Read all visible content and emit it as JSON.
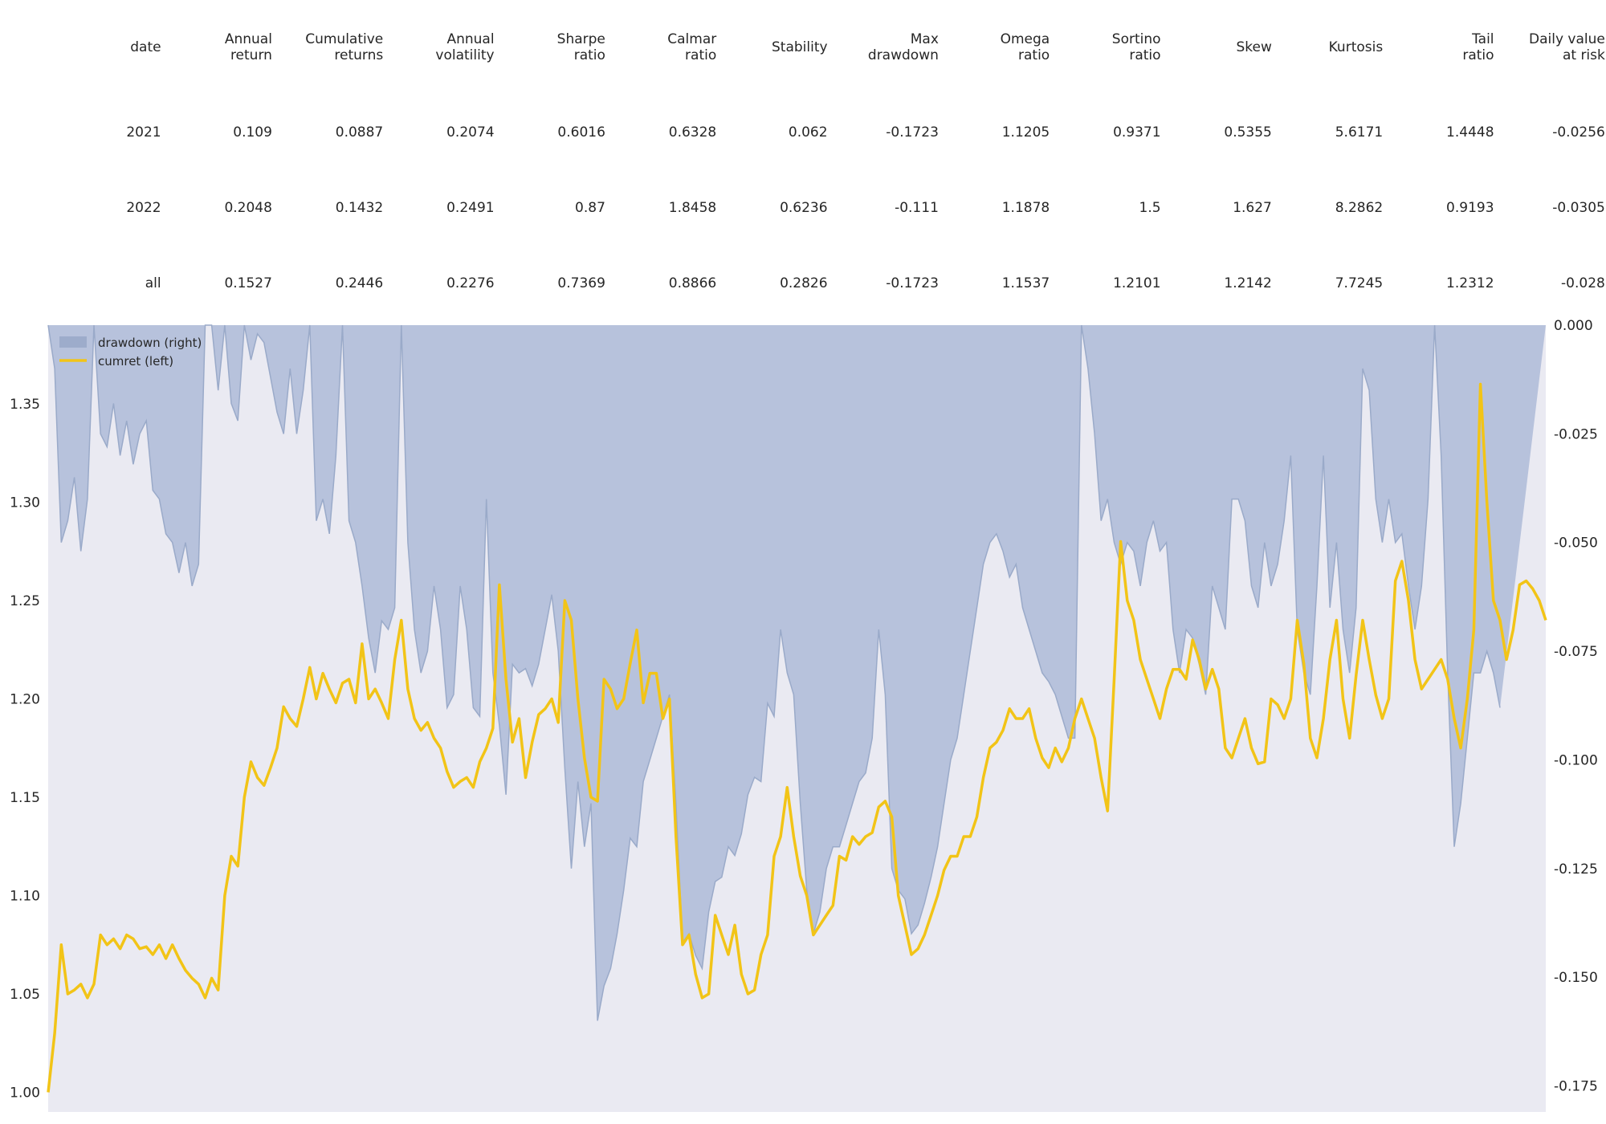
{
  "table": {
    "columns": [
      "date",
      "Annual\nreturn",
      "Cumulative\nreturns",
      "Annual\nvolatility",
      "Sharpe\nratio",
      "Calmar\nratio",
      "Stability",
      "Max\ndrawdown",
      "Omega\nratio",
      "Sortino\nratio",
      "Skew",
      "Kurtosis",
      "Tail\nratio",
      "Daily value\nat risk"
    ],
    "rows": [
      [
        "2021",
        "0.109",
        "0.0887",
        "0.2074",
        "0.6016",
        "0.6328",
        "0.062",
        "-0.1723",
        "1.1205",
        "0.9371",
        "0.5355",
        "5.6171",
        "1.4448",
        "-0.0256"
      ],
      [
        "2022",
        "0.2048",
        "0.1432",
        "0.2491",
        "0.87",
        "1.8458",
        "0.6236",
        "-0.111",
        "1.1878",
        "1.5",
        "1.627",
        "8.2862",
        "0.9193",
        "-0.0305"
      ],
      [
        "all",
        "0.1527",
        "0.2446",
        "0.2276",
        "0.7369",
        "0.8866",
        "0.2826",
        "-0.1723",
        "1.1537",
        "1.2101",
        "1.2142",
        "7.7245",
        "1.2312",
        "-0.028"
      ]
    ]
  },
  "chart_data": {
    "type": "line",
    "title": "",
    "xlabel": "",
    "legend": [
      {
        "label": "drawdown (right)",
        "kind": "area"
      },
      {
        "label": "cumret (left)",
        "kind": "line"
      }
    ],
    "legend_position": "top-left",
    "grid": false,
    "background_color": "#eaeaf2",
    "left_axis": {
      "ticks": [
        "1.00",
        "1.05",
        "1.10",
        "1.15",
        "1.20",
        "1.25",
        "1.30",
        "1.35"
      ],
      "ylim": [
        0.99,
        1.39
      ]
    },
    "right_axis": {
      "ticks": [
        "0.000",
        "-0.025",
        "-0.050",
        "-0.075",
        "-0.100",
        "-0.125",
        "-0.150",
        "-0.175"
      ],
      "ylim": [
        -0.181,
        0.0
      ]
    },
    "series": [
      {
        "name": "cumret (left)",
        "axis": "left",
        "color": "#f2c417",
        "values": [
          1.0,
          1.03,
          1.075,
          1.05,
          1.052,
          1.055,
          1.048,
          1.055,
          1.08,
          1.075,
          1.078,
          1.073,
          1.08,
          1.078,
          1.073,
          1.074,
          1.07,
          1.075,
          1.068,
          1.075,
          1.068,
          1.062,
          1.058,
          1.055,
          1.048,
          1.058,
          1.052,
          1.1,
          1.12,
          1.115,
          1.15,
          1.168,
          1.16,
          1.156,
          1.165,
          1.175,
          1.196,
          1.19,
          1.186,
          1.2,
          1.216,
          1.2,
          1.213,
          1.205,
          1.198,
          1.208,
          1.21,
          1.198,
          1.228,
          1.2,
          1.205,
          1.198,
          1.19,
          1.22,
          1.24,
          1.205,
          1.19,
          1.184,
          1.188,
          1.18,
          1.175,
          1.163,
          1.155,
          1.158,
          1.16,
          1.155,
          1.168,
          1.175,
          1.185,
          1.258,
          1.21,
          1.178,
          1.19,
          1.16,
          1.178,
          1.192,
          1.195,
          1.2,
          1.188,
          1.25,
          1.24,
          1.2,
          1.17,
          1.15,
          1.148,
          1.21,
          1.205,
          1.195,
          1.2,
          1.218,
          1.235,
          1.198,
          1.213,
          1.213,
          1.19,
          1.2,
          1.13,
          1.075,
          1.08,
          1.06,
          1.048,
          1.05,
          1.09,
          1.08,
          1.07,
          1.085,
          1.06,
          1.05,
          1.052,
          1.07,
          1.08,
          1.12,
          1.13,
          1.155,
          1.13,
          1.11,
          1.1,
          1.08,
          1.085,
          1.09,
          1.095,
          1.12,
          1.118,
          1.13,
          1.126,
          1.13,
          1.132,
          1.145,
          1.148,
          1.14,
          1.1,
          1.085,
          1.07,
          1.073,
          1.08,
          1.09,
          1.1,
          1.113,
          1.12,
          1.12,
          1.13,
          1.13,
          1.14,
          1.16,
          1.175,
          1.178,
          1.184,
          1.195,
          1.19,
          1.19,
          1.195,
          1.18,
          1.17,
          1.165,
          1.175,
          1.168,
          1.175,
          1.19,
          1.2,
          1.19,
          1.18,
          1.16,
          1.143,
          1.21,
          1.28,
          1.25,
          1.24,
          1.22,
          1.21,
          1.2,
          1.19,
          1.205,
          1.215,
          1.215,
          1.21,
          1.23,
          1.22,
          1.205,
          1.215,
          1.205,
          1.175,
          1.17,
          1.18,
          1.19,
          1.175,
          1.167,
          1.168,
          1.2,
          1.197,
          1.19,
          1.2,
          1.24,
          1.218,
          1.18,
          1.17,
          1.19,
          1.22,
          1.24,
          1.2,
          1.18,
          1.212,
          1.24,
          1.22,
          1.202,
          1.19,
          1.2,
          1.26,
          1.27,
          1.25,
          1.22,
          1.205,
          1.21,
          1.215,
          1.22,
          1.21,
          1.19,
          1.175,
          1.2,
          1.235,
          1.36,
          1.3,
          1.25,
          1.24,
          1.22,
          1.235,
          1.258,
          1.26,
          1.256,
          1.25,
          1.24
        ]
      },
      {
        "name": "drawdown (right)",
        "axis": "right",
        "color": "#b7c2dc",
        "edge_color": "#9aaac9",
        "values": [
          0.0,
          -0.01,
          -0.05,
          -0.045,
          -0.035,
          -0.052,
          -0.04,
          -0.0,
          -0.025,
          -0.028,
          -0.018,
          -0.03,
          -0.022,
          -0.032,
          -0.025,
          -0.022,
          -0.038,
          -0.04,
          -0.048,
          -0.05,
          -0.057,
          -0.05,
          -0.06,
          -0.055,
          -0.0,
          -0.0,
          -0.015,
          -0.0,
          -0.018,
          -0.022,
          -0.0,
          -0.008,
          -0.002,
          -0.004,
          -0.012,
          -0.02,
          -0.025,
          -0.01,
          -0.025,
          -0.015,
          -0.0,
          -0.045,
          -0.04,
          -0.048,
          -0.03,
          -0.0,
          -0.045,
          -0.05,
          -0.06,
          -0.072,
          -0.08,
          -0.068,
          -0.07,
          -0.065,
          -0.0,
          -0.05,
          -0.07,
          -0.08,
          -0.075,
          -0.06,
          -0.07,
          -0.088,
          -0.085,
          -0.06,
          -0.07,
          -0.088,
          -0.09,
          -0.04,
          -0.08,
          -0.092,
          -0.108,
          -0.078,
          -0.08,
          -0.079,
          -0.083,
          -0.078,
          -0.07,
          -0.062,
          -0.075,
          -0.102,
          -0.125,
          -0.105,
          -0.12,
          -0.11,
          -0.16,
          -0.152,
          -0.148,
          -0.14,
          -0.13,
          -0.118,
          -0.12,
          -0.105,
          -0.1,
          -0.095,
          -0.09,
          -0.085,
          -0.11,
          -0.142,
          -0.14,
          -0.145,
          -0.148,
          -0.135,
          -0.128,
          -0.127,
          -0.12,
          -0.122,
          -0.117,
          -0.108,
          -0.104,
          -0.105,
          -0.087,
          -0.09,
          -0.07,
          -0.08,
          -0.085,
          -0.11,
          -0.13,
          -0.14,
          -0.135,
          -0.125,
          -0.12,
          -0.12,
          -0.115,
          -0.11,
          -0.105,
          -0.103,
          -0.095,
          -0.07,
          -0.085,
          -0.125,
          -0.13,
          -0.132,
          -0.14,
          -0.138,
          -0.133,
          -0.127,
          -0.12,
          -0.11,
          -0.1,
          -0.095,
          -0.085,
          -0.075,
          -0.065,
          -0.055,
          -0.05,
          -0.048,
          -0.052,
          -0.058,
          -0.055,
          -0.065,
          -0.07,
          -0.075,
          -0.08,
          -0.082,
          -0.085,
          -0.09,
          -0.095,
          -0.095,
          -0.0,
          -0.01,
          -0.025,
          -0.045,
          -0.04,
          -0.05,
          -0.055,
          -0.05,
          -0.052,
          -0.06,
          -0.05,
          -0.045,
          -0.052,
          -0.05,
          -0.07,
          -0.08,
          -0.07,
          -0.072,
          -0.078,
          -0.085,
          -0.06,
          -0.065,
          -0.07,
          -0.04,
          -0.04,
          -0.045,
          -0.06,
          -0.065,
          -0.05,
          -0.06,
          -0.055,
          -0.045,
          -0.03,
          -0.07,
          -0.08,
          -0.085,
          -0.06,
          -0.03,
          -0.065,
          -0.05,
          -0.07,
          -0.08,
          -0.065,
          -0.01,
          -0.015,
          -0.04,
          -0.05,
          -0.04,
          -0.05,
          -0.048,
          -0.06,
          -0.07,
          -0.06,
          -0.04,
          -0.0,
          -0.03,
          -0.08,
          -0.12,
          -0.11,
          -0.095,
          -0.08,
          -0.08,
          -0.075,
          -0.08,
          -0.088
        ]
      }
    ]
  }
}
